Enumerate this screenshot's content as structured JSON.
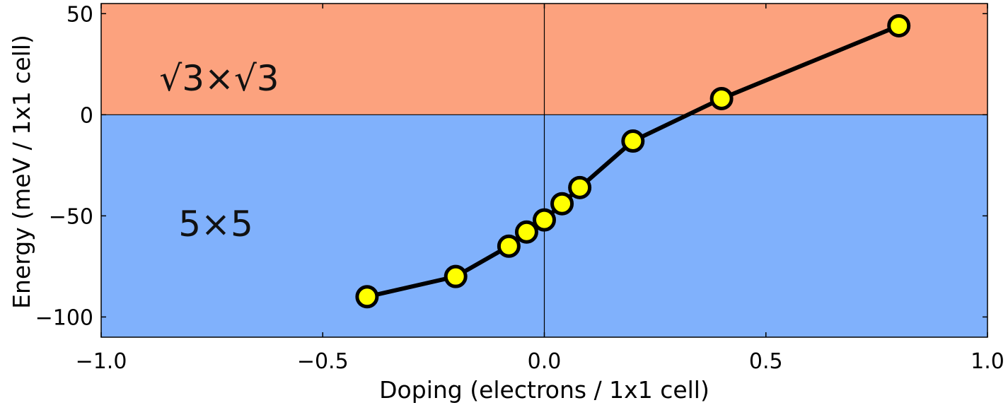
{
  "chart_data": {
    "type": "line",
    "xlabel": "Doping (electrons / 1x1 cell)",
    "ylabel": "Energy (meV / 1x1 cell)",
    "xlim": [
      -1.0,
      1.0
    ],
    "ylim": [
      -110,
      55
    ],
    "x_ticks": [
      -1.0,
      -0.5,
      0.0,
      0.5,
      1.0
    ],
    "x_tick_labels": [
      "−1.0",
      "−0.5",
      "0.0",
      "0.5",
      "1.0"
    ],
    "y_ticks": [
      -100,
      -50,
      0,
      50
    ],
    "y_tick_labels": [
      "−100",
      "−50",
      "0",
      "50"
    ],
    "grid": false,
    "reference_lines": {
      "x": 0,
      "y": 0
    },
    "regions": [
      {
        "label": "√3×√3",
        "y_from": 0,
        "y_to": 55,
        "color": "#fca27e"
      },
      {
        "label": "5×5",
        "y_from": -110,
        "y_to": 0,
        "color": "#80b1fc"
      }
    ],
    "series": [
      {
        "x": [
          -0.4,
          -0.2,
          -0.08,
          -0.04,
          0.0,
          0.04,
          0.08,
          0.2,
          0.4,
          0.8
        ],
        "y": [
          -90,
          -80,
          -65,
          -58,
          -52,
          -44,
          -36,
          -13,
          8,
          44
        ],
        "line_color": "#000000",
        "marker_color": "#ffff00"
      }
    ]
  }
}
